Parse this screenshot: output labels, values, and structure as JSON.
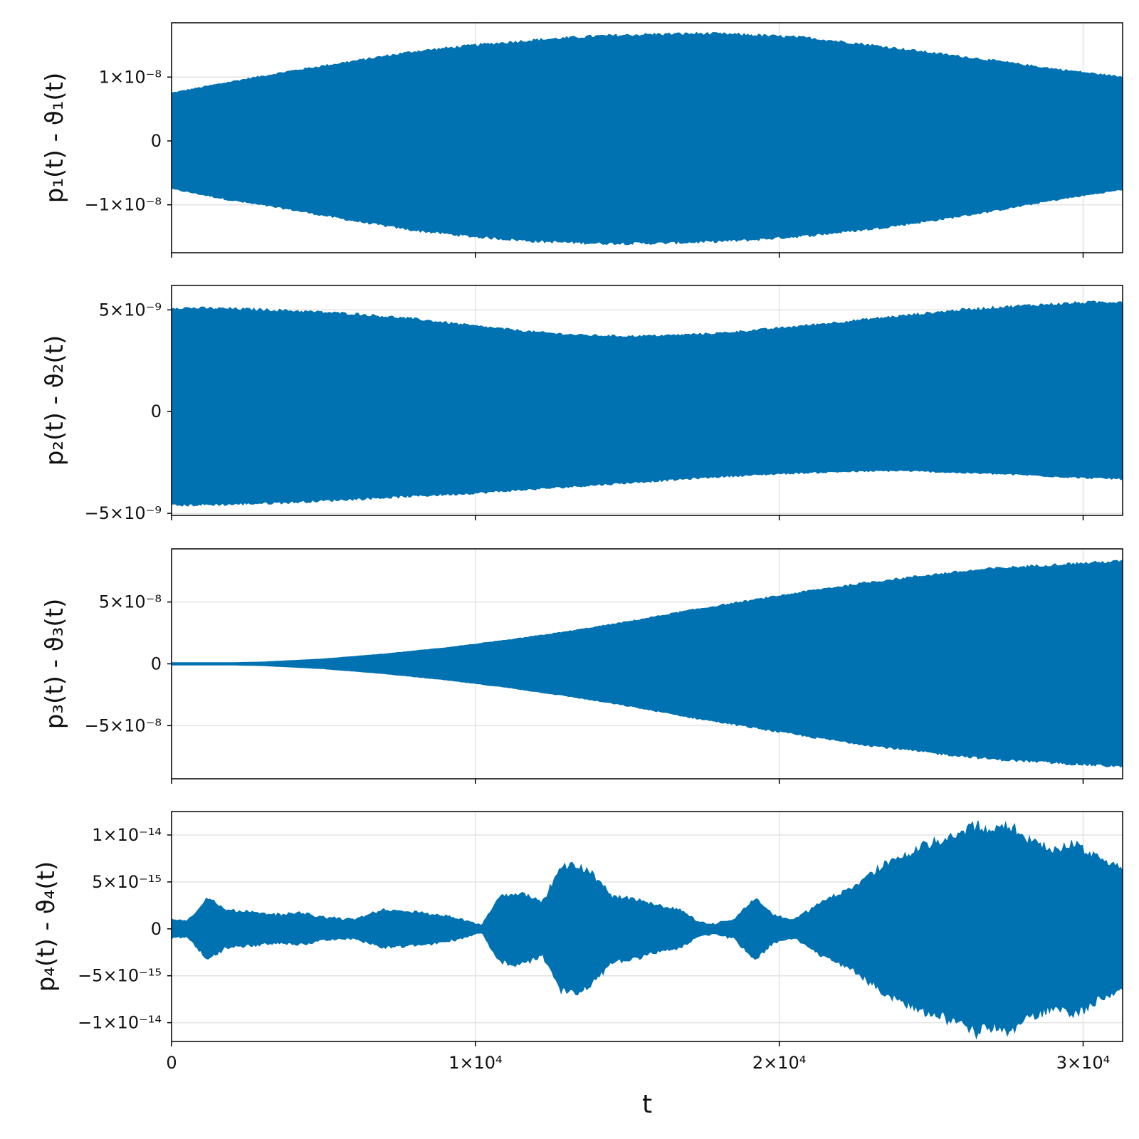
{
  "chart_data": [
    {
      "type": "area",
      "ylabel": "p₁(t) - ϑ₁(t)",
      "xlim": [
        0,
        31300
      ],
      "ylim": [
        -1.75e-08,
        1.85e-08
      ],
      "yticks": [
        {
          "v": 1e-08,
          "label": "1×10⁻⁸"
        },
        {
          "v": 0,
          "label": "0"
        },
        {
          "v": -1e-08,
          "label": "−1×10⁻⁸"
        }
      ],
      "envelope": {
        "x": [
          0,
          2000,
          4000,
          6000,
          8000,
          10000,
          12000,
          14000,
          16000,
          17500,
          19000,
          21000,
          23000,
          25000,
          27000,
          29000,
          31300
        ],
        "upper": [
          7.5e-09,
          9.3e-09,
          1.1e-08,
          1.25e-08,
          1.4e-08,
          1.5e-08,
          1.58e-08,
          1.64e-08,
          1.67e-08,
          1.68e-08,
          1.66e-08,
          1.61e-08,
          1.5e-08,
          1.38e-08,
          1.26e-08,
          1.13e-08,
          1e-08
        ],
        "lower": [
          -7.5e-09,
          -9.3e-09,
          -1.08e-08,
          -1.25e-08,
          -1.4e-08,
          -1.5e-08,
          -1.57e-08,
          -1.6e-08,
          -1.6e-08,
          -1.58e-08,
          -1.55e-08,
          -1.48e-08,
          -1.38e-08,
          -1.25e-08,
          -1.1e-08,
          -9.3e-09,
          -7.6e-09
        ]
      }
    },
    {
      "type": "area",
      "ylabel": "p₂(t) - ϑ₂(t)",
      "xlim": [
        0,
        31300
      ],
      "ylim": [
        -5.1e-09,
        6.2e-09
      ],
      "yticks": [
        {
          "v": 5e-09,
          "label": "5×10⁻⁹"
        },
        {
          "v": 0,
          "label": "0"
        },
        {
          "v": -5e-09,
          "label": "−5×10⁻⁹"
        }
      ],
      "envelope": {
        "x": [
          0,
          2000,
          4000,
          6000,
          8000,
          10000,
          12000,
          13500,
          15000,
          16500,
          18000,
          20000,
          22000,
          24000,
          26000,
          28000,
          30000,
          31300
        ],
        "upper": [
          5.1e-09,
          5.05e-09,
          4.95e-09,
          4.8e-09,
          4.55e-09,
          4.2e-09,
          3.9e-09,
          3.75e-09,
          3.7e-09,
          3.75e-09,
          3.85e-09,
          4.1e-09,
          4.4e-09,
          4.7e-09,
          5e-09,
          5.2e-09,
          5.35e-09,
          5.4e-09
        ],
        "lower": [
          -4.6e-09,
          -4.55e-09,
          -4.45e-09,
          -4.3e-09,
          -4.15e-09,
          -4e-09,
          -3.8e-09,
          -3.65e-09,
          -3.5e-09,
          -3.35e-09,
          -3.2e-09,
          -3.05e-09,
          -2.95e-09,
          -2.9e-09,
          -3e-09,
          -3.1e-09,
          -3.25e-09,
          -3.3e-09
        ]
      }
    },
    {
      "type": "area",
      "ylabel": "p₃(t) - ϑ₃(t)",
      "xlim": [
        0,
        31300
      ],
      "ylim": [
        -9.3e-08,
        9.3e-08
      ],
      "yticks": [
        {
          "v": 5e-08,
          "label": "5×10⁻⁸"
        },
        {
          "v": 0,
          "label": "0"
        },
        {
          "v": -5e-08,
          "label": "−5×10⁻⁸"
        }
      ],
      "envelope": {
        "x": [
          0,
          2000,
          3000,
          5000,
          7000,
          9000,
          11000,
          13000,
          15000,
          17000,
          19000,
          21000,
          23000,
          25000,
          27000,
          29000,
          31300
        ],
        "upper": [
          1e-09,
          1e-09,
          1.5e-09,
          4e-09,
          8e-09,
          1.3e-08,
          1.9e-08,
          2.6e-08,
          3.4e-08,
          4.3e-08,
          5.1e-08,
          5.9e-08,
          6.6e-08,
          7.2e-08,
          7.7e-08,
          8e-08,
          8.3e-08
        ],
        "lower": [
          -1e-09,
          -1e-09,
          -1.5e-09,
          -4e-09,
          -8e-09,
          -1.3e-08,
          -1.9e-08,
          -2.6e-08,
          -3.4e-08,
          -4.3e-08,
          -5.1e-08,
          -5.9e-08,
          -6.6e-08,
          -7.2e-08,
          -7.7e-08,
          -8e-08,
          -8.3e-08
        ]
      }
    },
    {
      "type": "area",
      "ylabel": "p₄(t) - ϑ₄(t)",
      "xlabel": "t",
      "xlim": [
        0,
        31300
      ],
      "ylim": [
        -1.2e-14,
        1.25e-14
      ],
      "yticks": [
        {
          "v": 1e-14,
          "label": "1×10⁻¹⁴"
        },
        {
          "v": 5e-15,
          "label": "5×10⁻¹⁵"
        },
        {
          "v": 0,
          "label": "0"
        },
        {
          "v": -5e-15,
          "label": "−5×10⁻¹⁵"
        },
        {
          "v": -1e-14,
          "label": "−1×10⁻¹⁴"
        }
      ],
      "envelope": {
        "x": [
          0,
          500,
          1200,
          1800,
          2500,
          3500,
          4200,
          5000,
          6000,
          7000,
          7800,
          8500,
          9300,
          10200,
          10800,
          11500,
          12200,
          12800,
          13300,
          13800,
          14500,
          15200,
          16000,
          16800,
          17300,
          17800,
          18500,
          19200,
          19800,
          20500,
          21500,
          22500,
          23500,
          24500,
          25500,
          26500,
          27000,
          27600,
          28200,
          29000,
          29800,
          30500,
          31300
        ],
        "upper": [
          1e-15,
          8e-16,
          3.3e-15,
          2e-15,
          1.8e-15,
          1.5e-15,
          1.7e-15,
          1.2e-15,
          1e-15,
          2e-15,
          1.8e-15,
          1.6e-15,
          1.2e-15,
          4e-16,
          3.5e-15,
          3.8e-15,
          2.8e-15,
          6.5e-15,
          6.8e-15,
          6e-15,
          3.5e-15,
          3.2e-15,
          2.5e-15,
          2e-15,
          8e-16,
          5e-16,
          1e-15,
          3.3e-15,
          1.5e-15,
          1e-15,
          3e-15,
          4.5e-15,
          7e-15,
          8.5e-15,
          9.5e-15,
          1.1e-14,
          1.05e-14,
          1.1e-14,
          9.5e-15,
          8.5e-15,
          9e-15,
          7.5e-15,
          6.5e-15
        ],
        "lower": [
          -1e-15,
          -8e-16,
          -3.3e-15,
          -2e-15,
          -1.8e-15,
          -1.5e-15,
          -1.7e-15,
          -1.2e-15,
          -1e-15,
          -2e-15,
          -1.8e-15,
          -1.6e-15,
          -1.2e-15,
          -4e-16,
          -3.5e-15,
          -3.8e-15,
          -2.8e-15,
          -6.5e-15,
          -6.8e-15,
          -6e-15,
          -3.5e-15,
          -3.2e-15,
          -2.5e-15,
          -2e-15,
          -8e-16,
          -5e-16,
          -1e-15,
          -3.3e-15,
          -1.5e-15,
          -1e-15,
          -3e-15,
          -4.5e-15,
          -7e-15,
          -8.5e-15,
          -9.5e-15,
          -1.1e-14,
          -1.05e-14,
          -1.1e-14,
          -9.5e-15,
          -8.5e-15,
          -9e-15,
          -7.5e-15,
          -6.5e-15
        ]
      }
    }
  ],
  "xticks": [
    {
      "v": 0,
      "label": "0"
    },
    {
      "v": 10000,
      "label": "1×10⁴"
    },
    {
      "v": 20000,
      "label": "2×10⁴"
    },
    {
      "v": 30000,
      "label": "3×10⁴"
    }
  ],
  "colors": {
    "series": "#0072b2",
    "grid": "#e3e3e3",
    "axis": "#000000"
  },
  "grid": true
}
